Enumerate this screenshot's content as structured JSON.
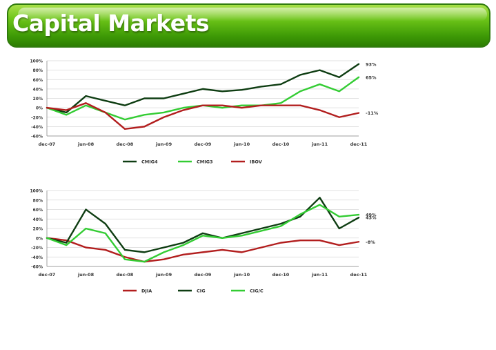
{
  "page": {
    "title": "Capital Markets"
  },
  "chart_data": [
    {
      "type": "line",
      "x": [
        "dec-07",
        "mar-08",
        "jun-08",
        "sep-08",
        "dec-08",
        "mar-09",
        "jun-09",
        "sep-09",
        "dec-09",
        "mar-10",
        "jun-10",
        "sep-10",
        "dec-10",
        "mar-11",
        "jun-11",
        "sep-11",
        "dec-11"
      ],
      "x_tick_labels": [
        "dec-07",
        "jun-08",
        "dec-08",
        "jun-09",
        "dec-09",
        "jun-10",
        "dec-10",
        "jun-11",
        "dec-11"
      ],
      "y_tick_labels": [
        "100%",
        "80%",
        "60%",
        "40%",
        "20%",
        "0%",
        "-20%",
        "-40%",
        "-60%"
      ],
      "ylim": [
        -60,
        100
      ],
      "grid": true,
      "legend_position": "bottom",
      "series": [
        {
          "name": "CMIG4",
          "color": "#0e3d12",
          "end_label": "93%",
          "values": [
            0,
            -10,
            25,
            15,
            5,
            20,
            20,
            30,
            40,
            35,
            38,
            45,
            50,
            70,
            80,
            65,
            93
          ]
        },
        {
          "name": "CMIG3",
          "color": "#33cc33",
          "end_label": "65%",
          "values": [
            0,
            -15,
            5,
            -10,
            -25,
            -15,
            -10,
            0,
            5,
            0,
            5,
            5,
            10,
            35,
            50,
            35,
            65
          ]
        },
        {
          "name": "IBOV",
          "color": "#b21e1e",
          "end_label": "-11%",
          "values": [
            0,
            -5,
            10,
            -10,
            -45,
            -40,
            -20,
            -5,
            5,
            5,
            0,
            5,
            5,
            5,
            -5,
            -20,
            -11
          ]
        }
      ]
    },
    {
      "type": "line",
      "x": [
        "dec-07",
        "mar-08",
        "jun-08",
        "sep-08",
        "dec-08",
        "mar-09",
        "jun-09",
        "sep-09",
        "dec-09",
        "mar-10",
        "jun-10",
        "sep-10",
        "dec-10",
        "mar-11",
        "jun-11",
        "sep-11",
        "dec-11"
      ],
      "x_tick_labels": [
        "dec-07",
        "jun-08",
        "dec-08",
        "jun-09",
        "dec-09",
        "jun-10",
        "dec-10",
        "jun-11",
        "dec-11"
      ],
      "y_tick_labels": [
        "100%",
        "80%",
        "60%",
        "40%",
        "20%",
        "0%",
        "-20%",
        "-40%",
        "-60%"
      ],
      "ylim": [
        -60,
        100
      ],
      "grid": true,
      "legend_position": "bottom",
      "series": [
        {
          "name": "DJIA",
          "color": "#b21e1e",
          "end_label": "-8%",
          "values": [
            0,
            -5,
            -20,
            -25,
            -40,
            -50,
            -45,
            -35,
            -30,
            -25,
            -30,
            -20,
            -10,
            -5,
            -5,
            -15,
            -8
          ]
        },
        {
          "name": "CIG",
          "color": "#0e3d12",
          "end_label": "43%",
          "values": [
            0,
            -10,
            60,
            30,
            -25,
            -30,
            -20,
            -10,
            10,
            0,
            10,
            20,
            30,
            45,
            85,
            20,
            43
          ]
        },
        {
          "name": "CIG/C",
          "color": "#33cc33",
          "end_label": "49%",
          "values": [
            0,
            -15,
            20,
            10,
            -45,
            -50,
            -30,
            -15,
            5,
            0,
            5,
            15,
            25,
            50,
            70,
            45,
            49
          ]
        }
      ]
    }
  ]
}
